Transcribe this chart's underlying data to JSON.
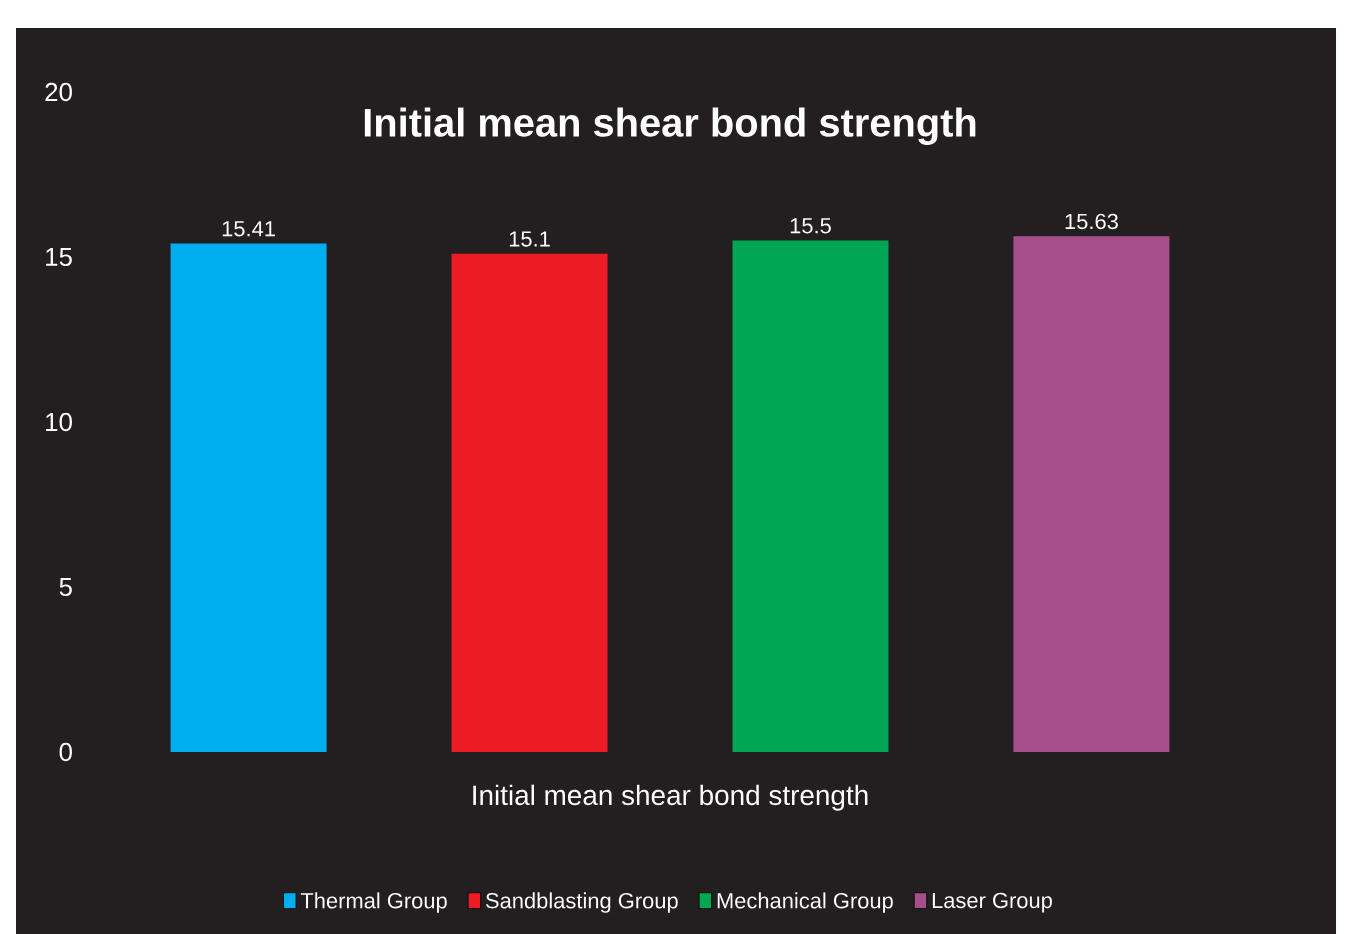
{
  "chart_data": {
    "type": "bar",
    "title": "Initial mean shear bond strength",
    "xlabel": "Initial mean shear bond strength",
    "categories": [
      null,
      null,
      null,
      null
    ],
    "stacked": true,
    "series": [
      {
        "name": "Thermal Group",
        "color": "#00aeef",
        "values": [
          15.41,
          null,
          null,
          null
        ]
      },
      {
        "name": "Sandblasting Group",
        "color": "#ed1c24",
        "values": [
          null,
          15.1,
          null,
          null
        ]
      },
      {
        "name": "Mechanical Group",
        "color": "#00a651",
        "values": [
          null,
          null,
          15.5,
          null
        ]
      },
      {
        "name": "Laser Group",
        "color": "#a64d8c",
        "values": [
          null,
          null,
          null,
          15.63
        ]
      }
    ],
    "ylim": [
      0,
      20
    ],
    "yticks": [
      0,
      5,
      10,
      15,
      20
    ],
    "data_labels": true,
    "legend": "bottom",
    "tick_labels": "y",
    "grid": false
  }
}
